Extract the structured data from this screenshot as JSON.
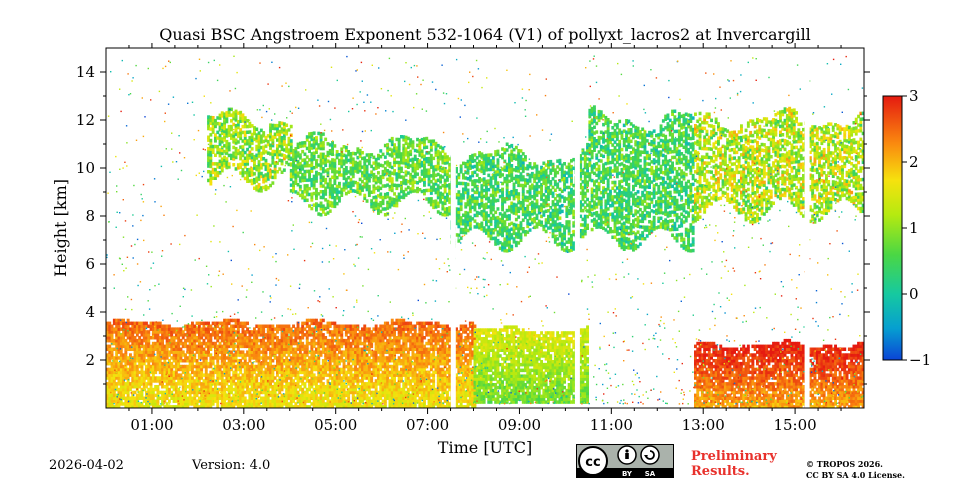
{
  "chart_data": {
    "type": "heatmap",
    "title": "Quasi BSC Angstroem Exponent 532-1064 (V1) of pollyxt_lacros2 at Invercargill",
    "xlabel": "Time [UTC]",
    "ylabel": "Height [km]",
    "xlim_hours": [
      0.0,
      16.5
    ],
    "ylim_km": [
      0.0,
      15.0
    ],
    "x_ticks": [
      {
        "hour": 1,
        "label": "01:00"
      },
      {
        "hour": 3,
        "label": "03:00"
      },
      {
        "hour": 5,
        "label": "05:00"
      },
      {
        "hour": 7,
        "label": "07:00"
      },
      {
        "hour": 9,
        "label": "09:00"
      },
      {
        "hour": 11,
        "label": "11:00"
      },
      {
        "hour": 13,
        "label": "13:00"
      },
      {
        "hour": 15,
        "label": "15:00"
      }
    ],
    "y_ticks": [
      {
        "km": 2,
        "label": "2"
      },
      {
        "km": 4,
        "label": "4"
      },
      {
        "km": 6,
        "label": "6"
      },
      {
        "km": 8,
        "label": "8"
      },
      {
        "km": 10,
        "label": "10"
      },
      {
        "km": 12,
        "label": "12"
      },
      {
        "km": 14,
        "label": "14"
      }
    ],
    "colorbar": {
      "min": -1,
      "max": 3,
      "ticks": [
        {
          "value": 3,
          "label": "3"
        },
        {
          "value": 2,
          "label": "2"
        },
        {
          "value": 1,
          "label": "1"
        },
        {
          "value": 0,
          "label": "0"
        },
        {
          "value": -1,
          "label": "−1"
        }
      ]
    },
    "regions": [
      {
        "name": "boundary-layer",
        "t_start": 0.0,
        "t_end": 8.0,
        "h_bottom": 0.0,
        "h_top": 3.5,
        "value_low": 1.0,
        "value_high": 2.5
      },
      {
        "name": "boundary-layer-late",
        "t_start": 8.0,
        "t_end": 10.5,
        "h_bottom": 0.2,
        "h_top": 3.2,
        "value_low": 0.3,
        "value_high": 1.5
      },
      {
        "name": "boundary-layer-evening",
        "t_start": 12.8,
        "t_end": 16.5,
        "h_bottom": 0.0,
        "h_top": 2.6,
        "value_low": 1.5,
        "value_high": 3.0
      },
      {
        "name": "cirrus-1",
        "t_start": 2.2,
        "t_end": 4.0,
        "h_bottom": 9.5,
        "h_top": 12.0,
        "value_low": 0.3,
        "value_high": 1.8
      },
      {
        "name": "cirrus-2",
        "t_start": 4.0,
        "t_end": 7.5,
        "h_bottom": 8.5,
        "h_top": 11.0,
        "value_low": 0.2,
        "value_high": 1.2
      },
      {
        "name": "cirrus-3",
        "t_start": 7.5,
        "t_end": 10.5,
        "h_bottom": 7.0,
        "h_top": 10.5,
        "value_low": 0.0,
        "value_high": 1.0
      },
      {
        "name": "cirrus-4",
        "t_start": 10.5,
        "t_end": 12.8,
        "h_bottom": 7.0,
        "h_top": 12.0,
        "value_low": 0.0,
        "value_high": 1.0
      },
      {
        "name": "cirrus-5",
        "t_start": 12.8,
        "t_end": 16.5,
        "h_bottom": 8.2,
        "h_top": 12.0,
        "value_low": 0.5,
        "value_high": 2.0
      }
    ],
    "data_gaps_hours": [
      7.55,
      10.25,
      15.25
    ]
  },
  "footer": {
    "date": "2026-04-02",
    "version": "Version: 4.0",
    "preliminary_line1": "Preliminary",
    "preliminary_line2": "Results.",
    "copyright_line1": "© TROPOS 2026.",
    "copyright_line2": "CC BY SA 4.0 License.",
    "license_badge_by": "BY",
    "license_badge_sa": "SA"
  }
}
